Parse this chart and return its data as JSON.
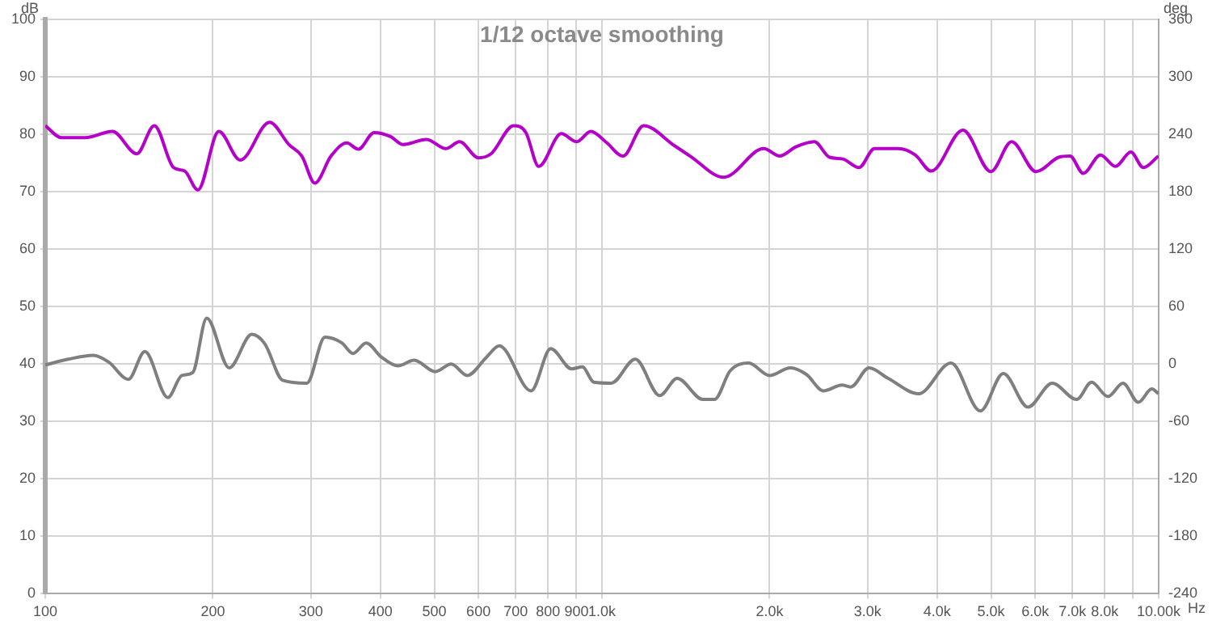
{
  "chart_data": {
    "type": "line",
    "title": "1/12 octave smoothing",
    "xlabel": "Hz",
    "ylabel": "dB",
    "y2label": "deg",
    "log": "x",
    "grid": true,
    "marker": "none",
    "line_style": "solid",
    "xlim": [
      100,
      10000
    ],
    "xticks": [
      100,
      200,
      300,
      400,
      500,
      600,
      700,
      800,
      900,
      {
        "value": 1000,
        "label": "1.0k"
      },
      {
        "value": 2000,
        "label": "2.0k"
      },
      {
        "value": 3000,
        "label": "3.0k"
      },
      {
        "value": 4000,
        "label": "4.0k"
      },
      {
        "value": 5000,
        "label": "5.0k"
      },
      {
        "value": 6000,
        "label": "6.0k"
      },
      {
        "value": 7000,
        "label": "7.0k"
      },
      {
        "value": 8000,
        "label": "8.0k"
      },
      {
        "value": 9000,
        "label": null
      },
      {
        "value": 10000,
        "label": "10.00k"
      }
    ],
    "ylim": [
      0,
      100
    ],
    "yticks": [
      0,
      10,
      20,
      30,
      40,
      50,
      60,
      70,
      80,
      90,
      100
    ],
    "y2lim": [
      -240,
      360
    ],
    "y2ticks": [
      -240,
      -180,
      -120,
      -60,
      0,
      60,
      120,
      180,
      240,
      300,
      360
    ],
    "series": [
      {
        "color": "#b400c8",
        "x": [
          100,
          107,
          118,
          132,
          146,
          157,
          170,
          178,
          188,
          205,
          224,
          253,
          274,
          289,
          305,
          326,
          348,
          365,
          390,
          417,
          439,
          484,
          524,
          555,
          600,
          632,
          694,
          730,
          770,
          845,
          901,
          955,
          1018,
          1091,
          1188,
          1350,
          1440,
          1655,
          1953,
          2086,
          2230,
          2407,
          2564,
          2707,
          2895,
          3088,
          3402,
          3654,
          3904,
          4452,
          4994,
          5444,
          6022,
          6617,
          6930,
          7321,
          7862,
          8363,
          8915,
          9387,
          9989
        ],
        "values": [
          81.5,
          79.4,
          79.4,
          80.5,
          76.6,
          81.5,
          74.2,
          73.6,
          70.3,
          80.5,
          75.5,
          82.1,
          78.2,
          76.2,
          71.5,
          76.2,
          78.5,
          77.4,
          80.3,
          79.6,
          78.2,
          79.1,
          77.5,
          78.7,
          75.9,
          76.6,
          81.5,
          80.3,
          74.4,
          80.1,
          78.7,
          80.5,
          78.6,
          76.2,
          81.5,
          78,
          76.2,
          72.5,
          77.5,
          76.2,
          77.8,
          78.7,
          76,
          75.7,
          74.2,
          77.5,
          77.5,
          76.4,
          73.6,
          80.7,
          73.5,
          78.7,
          73.5,
          76,
          76.2,
          73.2,
          76.4,
          74.4,
          76.9,
          74.2,
          76.2
        ]
      },
      {
        "color": "#7f7f7f",
        "axis": "y2",
        "x": [
          100,
          110,
          122,
          130,
          141,
          151,
          166,
          176,
          184,
          195,
          214,
          235,
          248,
          267,
          295,
          318,
          341,
          357,
          377,
          402,
          430,
          460,
          502,
          536,
          573,
          620,
          654,
          746,
          809,
          882,
          922,
          967,
          1039,
          1148,
          1270,
          1365,
          1518,
          1592,
          1700,
          1834,
          2000,
          2180,
          2331,
          2498,
          2700,
          2797,
          3019,
          3267,
          3706,
          4236,
          4784,
          5261,
          5825,
          6440,
          7123,
          7578,
          8108,
          8629,
          9193,
          9723,
          9989
        ],
        "values": [
          -1,
          5,
          9,
          2,
          -16,
          13,
          -35,
          -12,
          -9,
          48,
          -4,
          31,
          21,
          -17,
          -20,
          28,
          22,
          11,
          22,
          7,
          -2,
          4,
          -8,
          0,
          -12,
          7,
          19,
          -28,
          16,
          -5,
          -3,
          -19,
          -20,
          5,
          -33,
          -15,
          -37,
          -37,
          -7,
          1,
          -12,
          -4,
          -11,
          -28,
          -22,
          -24,
          -4,
          -15,
          -31,
          1,
          -49,
          -10,
          -45,
          -20,
          -37,
          -19,
          -34,
          -20,
          -40,
          -26,
          -31
        ]
      }
    ]
  }
}
